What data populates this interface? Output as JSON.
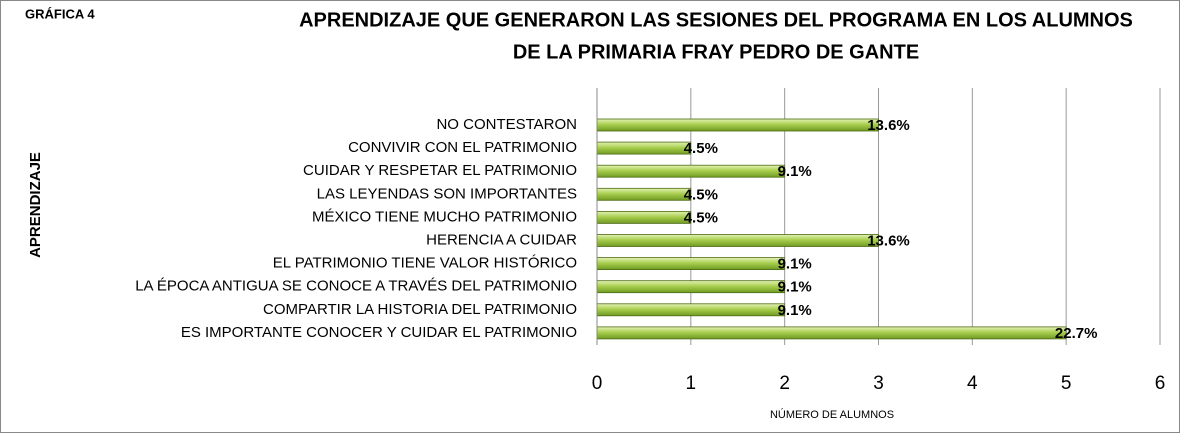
{
  "figure_label": "GRÁFICA 4",
  "chart_data": {
    "type": "hbar",
    "title": [
      "APRENDIZAJE QUE GENERARON LAS SESIONES  DEL PROGRAMA EN LOS ALUMNOS",
      "DE LA PRIMARIA FRAY PEDRO DE GANTE"
    ],
    "categories": [
      "NO CONTESTARON",
      "CONVIVIR CON EL PATRIMONIO",
      "CUIDAR Y RESPETAR EL PATRIMONIO",
      "LAS LEYENDAS SON IMPORTANTES",
      "MÉXICO TIENE MUCHO PATRIMONIO",
      "HERENCIA A CUIDAR",
      "EL PATRIMONIO TIENE VALOR HISTÓRICO",
      "LA ÉPOCA ANTIGUA SE CONOCE A TRAVÉS DEL PATRIMONIO",
      "COMPARTIR LA HISTORIA DEL PATRIMONIO",
      "ES IMPORTANTE CONOCER Y CUIDAR EL PATRIMONIO"
    ],
    "values": [
      3,
      1,
      2,
      1,
      1,
      3,
      2,
      2,
      2,
      5
    ],
    "value_labels": [
      "13.6%",
      "4.5%",
      "9.1%",
      "4.5%",
      "4.5%",
      "13.6%",
      "9.1%",
      "9.1%",
      "9.1%",
      "22.7%"
    ],
    "color": "#a9cf4f",
    "xlim": [
      0,
      6
    ],
    "xticks": [
      0,
      1,
      2,
      3,
      4,
      5,
      6
    ],
    "xlabel": "NÚMERO DE ALUMNOS",
    "ylabel": "APRENDIZAJE",
    "grid": true
  }
}
